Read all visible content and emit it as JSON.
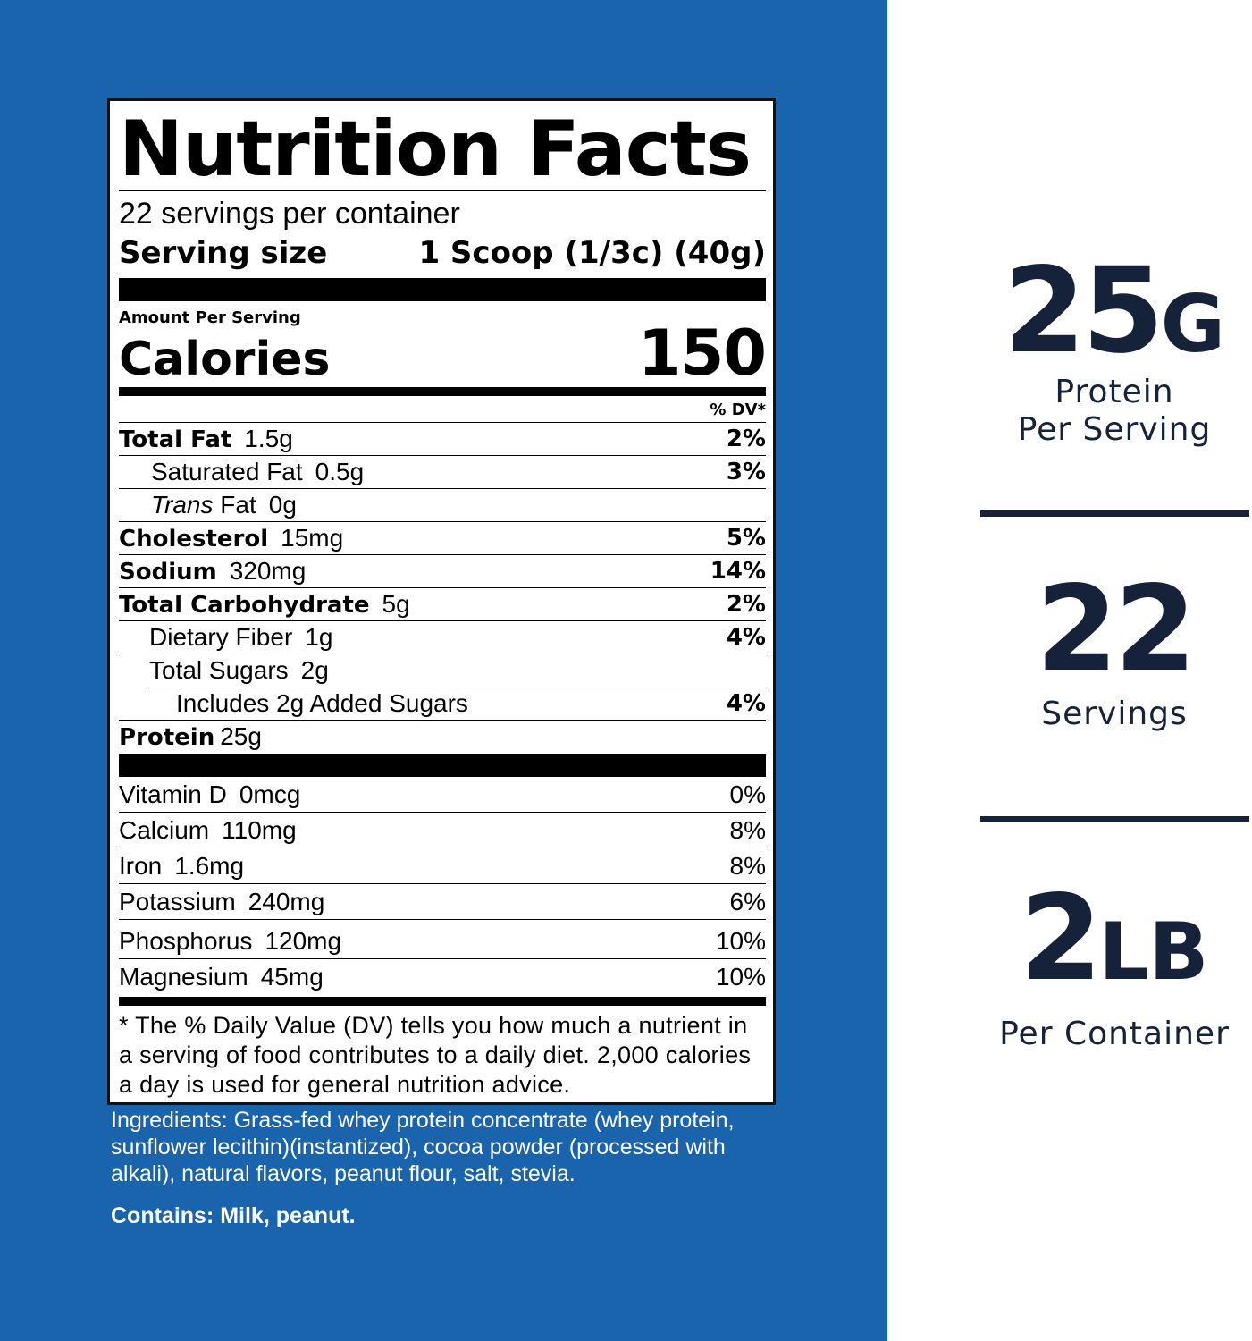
{
  "label": {
    "title": "Nutrition Facts",
    "servings_per_container": "22 servings per container",
    "serving_size_label": "Serving size",
    "serving_size_value": "1 Scoop (1/3c) (40g)",
    "amount_per_serving": "Amount Per Serving",
    "calories_label": "Calories",
    "calories_value": "150",
    "dv_header": "% DV*",
    "nutrients": [
      {
        "name": "Total Fat",
        "amount": "1.5g",
        "dv": "2%"
      },
      {
        "name": "Saturated Fat",
        "amount": "0.5g",
        "dv": "3%"
      },
      {
        "name_italic": "Trans",
        "name": "Fat",
        "amount": "0g",
        "dv": ""
      },
      {
        "name": "Cholesterol",
        "amount": "15mg",
        "dv": "5%"
      },
      {
        "name": "Sodium",
        "amount": "320mg",
        "dv": "14%"
      },
      {
        "name": "Total Carbohydrate",
        "amount": "5g",
        "dv": "2%"
      },
      {
        "name": "Dietary Fiber",
        "amount": "1g",
        "dv": "4%"
      },
      {
        "name": "Total Sugars",
        "amount": "2g",
        "dv": ""
      },
      {
        "name": "Includes 2g Added Sugars",
        "amount": "",
        "dv": "4%"
      },
      {
        "name": "Protein",
        "amount": "25g",
        "dv": ""
      }
    ],
    "vitamins": [
      {
        "name": "Vitamin D",
        "amount": "0mcg",
        "dv": "0%"
      },
      {
        "name": "Calcium",
        "amount": "110mg",
        "dv": "8%"
      },
      {
        "name": "Iron",
        "amount": "1.6mg",
        "dv": "8%"
      },
      {
        "name": "Potassium",
        "amount": "240mg",
        "dv": "6%"
      },
      {
        "name": "Phosphorus",
        "amount": "120mg",
        "dv": "10%"
      },
      {
        "name": "Magnesium",
        "amount": "45mg",
        "dv": "10%"
      }
    ],
    "footnote": "* The % Daily Value (DV) tells you how much a nutrient in a serving of food contributes to a daily diet. 2,000 calories a day is used for general nutrition advice."
  },
  "ingredients": "Ingredients: Grass-fed whey protein concentrate (whey protein, sunflower lecithin)(instantized), cocoa powder (processed with alkali), natural flavors, peanut flour, salt, stevia.",
  "contains": "Contains: Milk, peanut.",
  "stats": [
    {
      "value": "25",
      "unit": "G",
      "caption_line1": "Protein",
      "caption_line2": "Per Serving"
    },
    {
      "value": "22",
      "unit": "",
      "caption_line1": "Servings",
      "caption_line2": ""
    },
    {
      "value": "2",
      "unit": "LB",
      "caption_line1": "Per Container",
      "caption_line2": ""
    }
  ],
  "colors": {
    "panel_blue": "#1a63ad",
    "stat_navy": "#16213a"
  }
}
